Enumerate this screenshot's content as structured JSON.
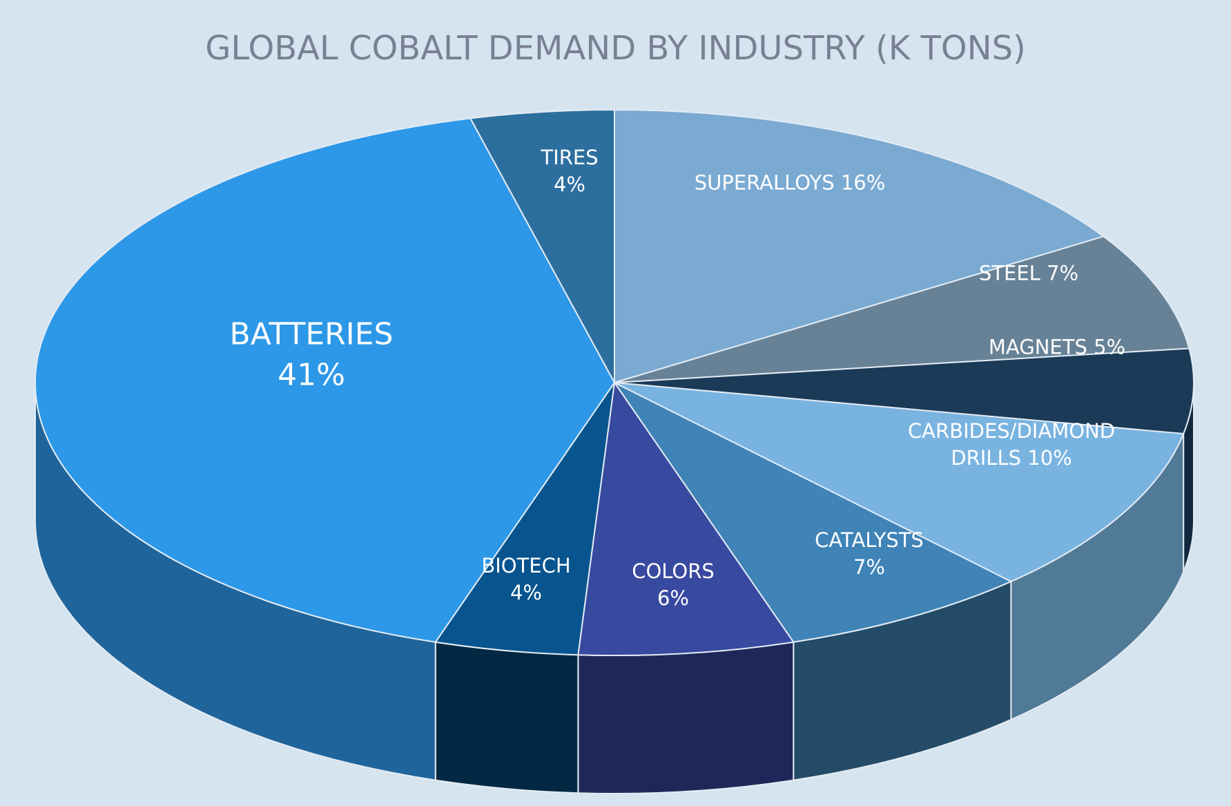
{
  "chart_data": {
    "type": "pie3d",
    "title": "GLOBAL COBALT DEMAND BY INDUSTRY (K TONS)",
    "categories": [
      "SUPERALLOYS",
      "STEEL",
      "MAGNETS",
      "CARBIDES/DIAMOND DRILLS",
      "CATALYSTS",
      "COLORS",
      "BIOTECH",
      "BATTERIES",
      "TIRES"
    ],
    "values": [
      16,
      7,
      5,
      10,
      7,
      6,
      4,
      41,
      4
    ],
    "value_labels": [
      "16%",
      "7%",
      "5%",
      "10%",
      "7%",
      "6%",
      "4%",
      "41%",
      "4%"
    ],
    "colors": [
      "#7aaad2",
      "#678296",
      "#1b3a57",
      "#79b3e0",
      "#3f83b7",
      "#3849a0",
      "#08548e",
      "#2d98e8",
      "#2c6f9f"
    ],
    "side_colors": [
      "#5e88aa",
      "#4e677a",
      "#12283f",
      "#517a96",
      "#244b68",
      "#1e2858",
      "#032843",
      "#20649c",
      "#1f5680"
    ]
  }
}
